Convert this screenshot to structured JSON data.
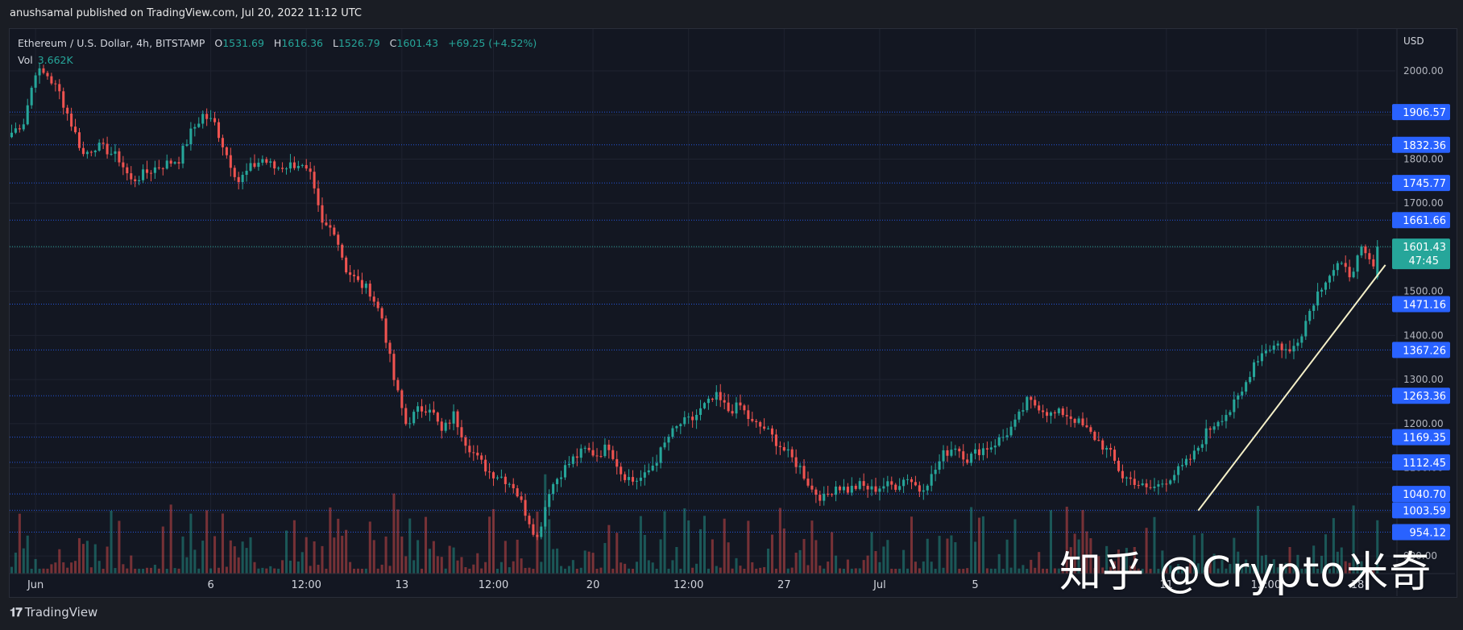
{
  "header": {
    "published_text": "anushsamal published on TradingView.com, Jul 20, 2022 11:12 UTC"
  },
  "legend": {
    "symbol": "Ethereum / U.S. Dollar, 4h, BITSTAMP",
    "open_label": "O",
    "open": "1531.69",
    "high_label": "H",
    "high": "1616.36",
    "low_label": "L",
    "low": "1526.79",
    "close_label": "C",
    "close": "1601.43",
    "change": "+69.25 (+4.52%)",
    "vol_label": "Vol",
    "vol": "3.662K"
  },
  "axis": {
    "currency": "USD",
    "last_price": "1601.43",
    "countdown": "47:45"
  },
  "colors": {
    "up": "#26a69a",
    "down": "#ef5350",
    "level_tag": "#2962ff",
    "last_tag": "#26a69a",
    "trendline": "#f5f0c8",
    "background": "#131722"
  },
  "footer": {
    "brand": "TradingView",
    "logo_icon": "tradingview-logo-icon"
  },
  "watermark": "知乎 @Crypto米奇",
  "chart_data": {
    "type": "candlestick",
    "title": "Ethereum / U.S. Dollar, 4h, BITSTAMP",
    "xlabel": "",
    "ylabel": "USD",
    "ylim": [
      860,
      2095
    ],
    "x_ticks": [
      "Jun",
      "6",
      "12:00",
      "13",
      "12:00",
      "20",
      "12:00",
      "27",
      "Jul",
      "5",
      "11",
      "12:00",
      "18",
      "12:00"
    ],
    "y_ticks": [
      900,
      1000,
      1100,
      1200,
      1300,
      1400,
      1500,
      1600,
      1700,
      1800,
      1900,
      2000
    ],
    "horizontal_levels": [
      1906.57,
      1832.36,
      1745.77,
      1661.66,
      1471.16,
      1367.26,
      1263.36,
      1169.35,
      1112.45,
      1040.7,
      1003.59,
      954.12
    ],
    "close_path": [
      [
        0,
        1860
      ],
      [
        3,
        1885
      ],
      [
        6,
        2000
      ],
      [
        9,
        1990
      ],
      [
        12,
        1950
      ],
      [
        15,
        1880
      ],
      [
        18,
        1810
      ],
      [
        21,
        1830
      ],
      [
        24,
        1820
      ],
      [
        27,
        1800
      ],
      [
        30,
        1750
      ],
      [
        33,
        1765
      ],
      [
        36,
        1780
      ],
      [
        39,
        1790
      ],
      [
        42,
        1800
      ],
      [
        45,
        1860
      ],
      [
        48,
        1900
      ],
      [
        51,
        1880
      ],
      [
        54,
        1810
      ],
      [
        57,
        1750
      ],
      [
        60,
        1780
      ],
      [
        63,
        1800
      ],
      [
        66,
        1780
      ],
      [
        69,
        1785
      ],
      [
        72,
        1790
      ],
      [
        75,
        1760
      ],
      [
        78,
        1650
      ],
      [
        81,
        1640
      ],
      [
        84,
        1550
      ],
      [
        87,
        1520
      ],
      [
        90,
        1500
      ],
      [
        93,
        1440
      ],
      [
        96,
        1300
      ],
      [
        99,
        1200
      ],
      [
        102,
        1230
      ],
      [
        105,
        1240
      ],
      [
        108,
        1180
      ],
      [
        111,
        1220
      ],
      [
        114,
        1160
      ],
      [
        117,
        1120
      ],
      [
        120,
        1090
      ],
      [
        123,
        1080
      ],
      [
        126,
        1060
      ],
      [
        129,
        1000
      ],
      [
        132,
        940
      ],
      [
        135,
        1050
      ],
      [
        138,
        1090
      ],
      [
        141,
        1120
      ],
      [
        144,
        1140
      ],
      [
        147,
        1130
      ],
      [
        150,
        1150
      ],
      [
        153,
        1090
      ],
      [
        156,
        1070
      ],
      [
        159,
        1080
      ],
      [
        162,
        1120
      ],
      [
        165,
        1170
      ],
      [
        168,
        1200
      ],
      [
        171,
        1210
      ],
      [
        174,
        1240
      ],
      [
        177,
        1260
      ],
      [
        180,
        1230
      ],
      [
        183,
        1240
      ],
      [
        186,
        1200
      ],
      [
        189,
        1190
      ],
      [
        192,
        1160
      ],
      [
        195,
        1130
      ],
      [
        198,
        1100
      ],
      [
        201,
        1050
      ],
      [
        204,
        1030
      ],
      [
        207,
        1060
      ],
      [
        210,
        1050
      ],
      [
        213,
        1060
      ],
      [
        216,
        1050
      ],
      [
        219,
        1060
      ],
      [
        222,
        1060
      ],
      [
        225,
        1080
      ],
      [
        228,
        1050
      ],
      [
        231,
        1080
      ],
      [
        234,
        1130
      ],
      [
        237,
        1150
      ],
      [
        240,
        1120
      ],
      [
        243,
        1140
      ],
      [
        246,
        1150
      ],
      [
        249,
        1170
      ],
      [
        252,
        1200
      ],
      [
        255,
        1250
      ],
      [
        258,
        1240
      ],
      [
        261,
        1220
      ],
      [
        264,
        1225
      ],
      [
        267,
        1210
      ],
      [
        270,
        1185
      ],
      [
        273,
        1160
      ],
      [
        276,
        1130
      ],
      [
        279,
        1080
      ],
      [
        282,
        1070
      ],
      [
        285,
        1050
      ],
      [
        288,
        1060
      ],
      [
        291,
        1080
      ],
      [
        294,
        1100
      ],
      [
        297,
        1130
      ],
      [
        300,
        1180
      ],
      [
        303,
        1210
      ],
      [
        306,
        1230
      ],
      [
        309,
        1270
      ],
      [
        312,
        1340
      ],
      [
        315,
        1370
      ],
      [
        318,
        1380
      ],
      [
        321,
        1360
      ],
      [
        324,
        1410
      ],
      [
        327,
        1480
      ],
      [
        330,
        1530
      ],
      [
        333,
        1560
      ],
      [
        336,
        1540
      ],
      [
        339,
        1590
      ],
      [
        342,
        1555
      ],
      [
        343,
        1601.43
      ]
    ],
    "last": {
      "open": 1531.69,
      "high": 1616.36,
      "low": 1526.79,
      "close": 1601.43,
      "change": 69.25,
      "change_pct": 4.52,
      "volume": "3.662K"
    },
    "trendline": {
      "from": {
        "bar": 298,
        "price": 1003
      },
      "to": {
        "bar": 345,
        "price": 1560
      }
    }
  }
}
